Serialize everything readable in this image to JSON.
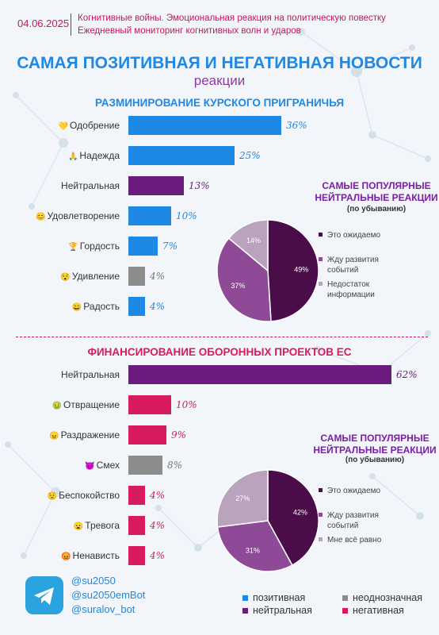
{
  "header": {
    "date": "04.06.2025",
    "line1": "Когнитивные войны. Эмоциональная реакция на политическую повестку",
    "line2": "Ежедневный мониторинг когнитивных волн и ударов"
  },
  "title": "САМАЯ ПОЗИТИВНАЯ И НЕГАТИВНАЯ НОВОСТИ",
  "subtitle": "реакции",
  "colors": {
    "positive": "#1e88e5",
    "ambiguous": "#8c8c8c",
    "neutral": "#6a1b7e",
    "negative": "#d81b60",
    "pie_dark": "#4a0d4a",
    "pie_mid": "#8e4a96",
    "pie_light": "#b9a3bd"
  },
  "chart_data": [
    {
      "type": "bar",
      "title": "РАЗМИНИРОВАНИЕ КУРСКОГО ПРИГРАНИЧЬЯ",
      "categories": [
        "Одобрение",
        "Надежда",
        "Нейтральная",
        "Удовлетворение",
        "Гордость",
        "Удивление",
        "Радость"
      ],
      "values": [
        36,
        25,
        13,
        10,
        7,
        4,
        4
      ],
      "value_labels": [
        "36%",
        "25%",
        "13%",
        "10%",
        "7%",
        "4%",
        "4%"
      ],
      "kinds": [
        "positive",
        "positive",
        "neutral",
        "positive",
        "positive",
        "ambiguous",
        "positive"
      ],
      "emojis": [
        "💛",
        "🙏",
        "",
        "😊",
        "🏆",
        "😯",
        "😄"
      ],
      "xlim": [
        0,
        62
      ]
    },
    {
      "type": "pie",
      "title": "САМЫЕ ПОПУЛЯРНЫЕ НЕЙТРАЛЬНЫЕ РЕАКЦИИ",
      "subtitle": "(по убыванию)",
      "labels": [
        "Это ожидаемо",
        "Жду развития событий",
        "Недостаток информации"
      ],
      "values": [
        49,
        37,
        14
      ],
      "value_labels": [
        "49%",
        "37%",
        "14%"
      ]
    },
    {
      "type": "bar",
      "title": "ФИНАНСИРОВАНИЕ ОБОРОННЫХ ПРОЕКТОВ ЕС",
      "categories": [
        "Нейтральная",
        "Отвращение",
        "Раздражение",
        "Смех",
        "Беспокойство",
        "Тревога",
        "Ненависть"
      ],
      "values": [
        62,
        10,
        9,
        8,
        4,
        4,
        4
      ],
      "value_labels": [
        "62%",
        "10%",
        "9%",
        "8%",
        "4%",
        "4%",
        "4%"
      ],
      "kinds": [
        "neutral",
        "negative",
        "negative",
        "ambiguous",
        "negative",
        "negative",
        "negative"
      ],
      "emojis": [
        "",
        "🤢",
        "😠",
        "😈",
        "😟",
        "😦",
        "😡"
      ],
      "xlim": [
        0,
        62
      ]
    },
    {
      "type": "pie",
      "title": "САМЫЕ ПОПУЛЯРНЫЕ НЕЙТРАЛЬНЫЕ РЕАКЦИИ",
      "subtitle": "(по убыванию)",
      "labels": [
        "Это ожидаемо",
        "Жду развития событий",
        "Мне всё равно"
      ],
      "values": [
        42,
        31,
        27
      ],
      "value_labels": [
        "42%",
        "31%",
        "27%"
      ]
    }
  ],
  "footer": {
    "handles": [
      "@su2050",
      "@su2050emBot",
      "@suralov_bot"
    ],
    "legend": [
      {
        "label": "позитивная",
        "kind": "positive"
      },
      {
        "label": "неоднозначная",
        "kind": "ambiguous"
      },
      {
        "label": "нейтральная",
        "kind": "neutral"
      },
      {
        "label": "негативная",
        "kind": "negative"
      }
    ]
  }
}
